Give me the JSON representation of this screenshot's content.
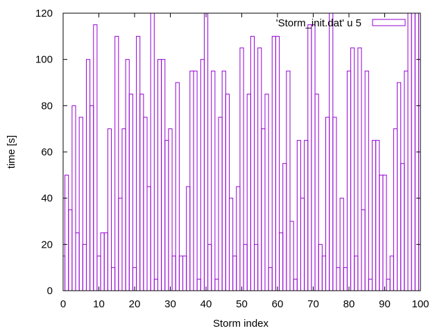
{
  "chart_data": {
    "type": "bar",
    "style": "histeps",
    "title": "",
    "xlabel": "Storm index",
    "ylabel": "time [s]",
    "xlim": [
      0,
      100
    ],
    "ylim": [
      0,
      120
    ],
    "xticks": [
      0,
      10,
      20,
      30,
      40,
      50,
      60,
      70,
      80,
      90,
      100
    ],
    "yticks": [
      0,
      20,
      40,
      60,
      80,
      100,
      120
    ],
    "grid": false,
    "legend_position": "top-right",
    "series": [
      {
        "name": "'Storm_init.dat' u 5",
        "color": "#9400d3",
        "x": [
          0,
          1,
          2,
          3,
          4,
          5,
          6,
          7,
          8,
          9,
          10,
          11,
          12,
          13,
          14,
          15,
          16,
          17,
          18,
          19,
          20,
          21,
          22,
          23,
          24,
          25,
          26,
          27,
          28,
          29,
          30,
          31,
          32,
          33,
          34,
          35,
          36,
          37,
          38,
          39,
          40,
          41,
          42,
          43,
          44,
          45,
          46,
          47,
          48,
          49,
          50,
          51,
          52,
          53,
          54,
          55,
          56,
          57,
          58,
          59,
          60,
          61,
          62,
          63,
          64,
          65,
          66,
          67,
          68,
          69,
          70,
          71,
          72,
          73,
          74,
          75,
          76,
          77,
          78,
          79,
          80,
          81,
          82,
          83,
          84,
          85,
          86,
          87,
          88,
          89,
          90,
          91,
          92,
          93,
          94,
          95,
          96,
          97,
          98,
          99,
          100
        ],
        "values": [
          15,
          50,
          35,
          80,
          25,
          75,
          20,
          100,
          80,
          115,
          15,
          25,
          25,
          70,
          10,
          110,
          40,
          70,
          100,
          85,
          10,
          110,
          85,
          75,
          45,
          120,
          5,
          100,
          100,
          65,
          70,
          15,
          90,
          15,
          15,
          45,
          95,
          95,
          5,
          100,
          120,
          20,
          95,
          5,
          75,
          95,
          85,
          40,
          15,
          45,
          105,
          20,
          85,
          110,
          20,
          105,
          70,
          85,
          10,
          110,
          110,
          25,
          55,
          95,
          30,
          5,
          65,
          40,
          65,
          115,
          115,
          85,
          20,
          15,
          75,
          120,
          75,
          10,
          40,
          10,
          95,
          105,
          15,
          105,
          35,
          95,
          5,
          65,
          65,
          50,
          50,
          5,
          15,
          70,
          90,
          55,
          95,
          120,
          120,
          120,
          120
        ]
      }
    ]
  }
}
